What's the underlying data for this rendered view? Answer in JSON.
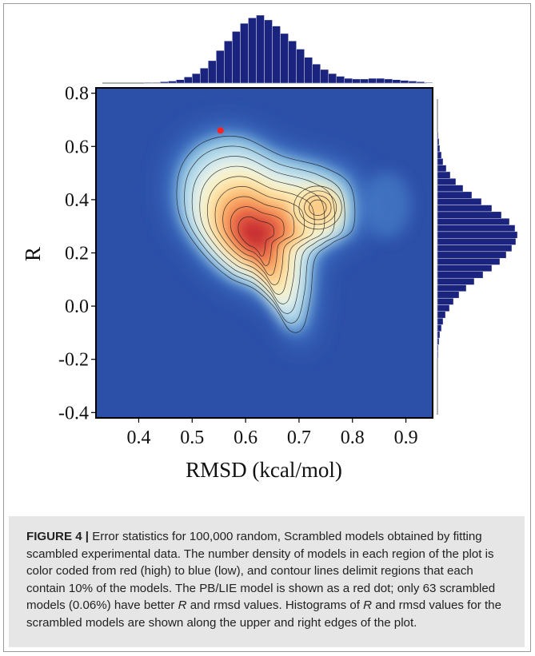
{
  "chart_data": {
    "type": "heatmap",
    "title": "",
    "xlabel": "RMSD (kcal/mol)",
    "ylabel": "R",
    "xlim": [
      0.32,
      0.95
    ],
    "ylim": [
      -0.42,
      0.82
    ],
    "xticks": [
      "0.4",
      "0.5",
      "0.6",
      "0.7",
      "0.8",
      "0.9"
    ],
    "yticks": [
      "0.8",
      "0.6",
      "0.4",
      "0.2",
      "0.0",
      "-0.2",
      "-0.4"
    ],
    "colormap": "red (high) to blue (low)",
    "density_peaks": [
      {
        "x": 0.615,
        "y": 0.26,
        "relative_density": 1.0
      },
      {
        "x": 0.735,
        "y": 0.37,
        "relative_density": 0.45
      },
      {
        "x": 0.865,
        "y": 0.38,
        "relative_density": 0.08
      }
    ],
    "contour_levels": 10,
    "highlight_point": {
      "x": 0.553,
      "y": 0.66,
      "color": "#ff2020",
      "label": "PB/LIE model"
    },
    "top_histogram": {
      "variable": "RMSD",
      "bin_start": 0.32,
      "bin_width": 0.015,
      "relative_counts": [
        0.0,
        0.0,
        0.0,
        0.0,
        0.0,
        0.0,
        0.01,
        0.01,
        0.02,
        0.03,
        0.05,
        0.09,
        0.14,
        0.22,
        0.33,
        0.48,
        0.62,
        0.76,
        0.88,
        0.96,
        1.0,
        0.93,
        0.84,
        0.73,
        0.62,
        0.5,
        0.38,
        0.28,
        0.2,
        0.14,
        0.1,
        0.07,
        0.06,
        0.06,
        0.07,
        0.07,
        0.06,
        0.05,
        0.04,
        0.03,
        0.02,
        0.01
      ]
    },
    "right_histogram": {
      "variable": "R",
      "bin_start": -0.42,
      "bin_width": 0.025,
      "relative_counts": [
        0.0,
        0.0,
        0.0,
        0.0,
        0.0,
        0.0,
        0.0,
        0.0,
        0.0,
        0.01,
        0.01,
        0.02,
        0.03,
        0.05,
        0.07,
        0.1,
        0.15,
        0.2,
        0.27,
        0.36,
        0.46,
        0.57,
        0.68,
        0.78,
        0.86,
        0.93,
        0.98,
        1.0,
        0.97,
        0.9,
        0.8,
        0.68,
        0.55,
        0.43,
        0.32,
        0.23,
        0.16,
        0.11,
        0.07,
        0.05,
        0.03,
        0.02,
        0.01,
        0.0,
        0.0,
        0.0,
        0.0,
        0.0,
        0.0,
        0.0
      ]
    },
    "histogram_color": "#1a237e",
    "background_color": "#2c4fa8",
    "grid": false,
    "legend": "none"
  },
  "caption": {
    "label": "FIGURE 4 |",
    "text_1": " Error statistics for 100,000 random, Scrambled models obtained by fitting scambled experimental data. The number density of models in each region of the plot is color coded from red (high) to blue (low), and contour lines delimit regions that each contain 10% of the models. The PB/LIE model is shown as a red dot; only 63 scrambled models (0.06%) have better ",
    "r_symbol": "R",
    "text_2": " and rmsd values. Histograms of ",
    "r_symbol_2": "R",
    "text_3": " and rmsd values for the scrambled models are shown along the upper and right edges of the plot."
  }
}
